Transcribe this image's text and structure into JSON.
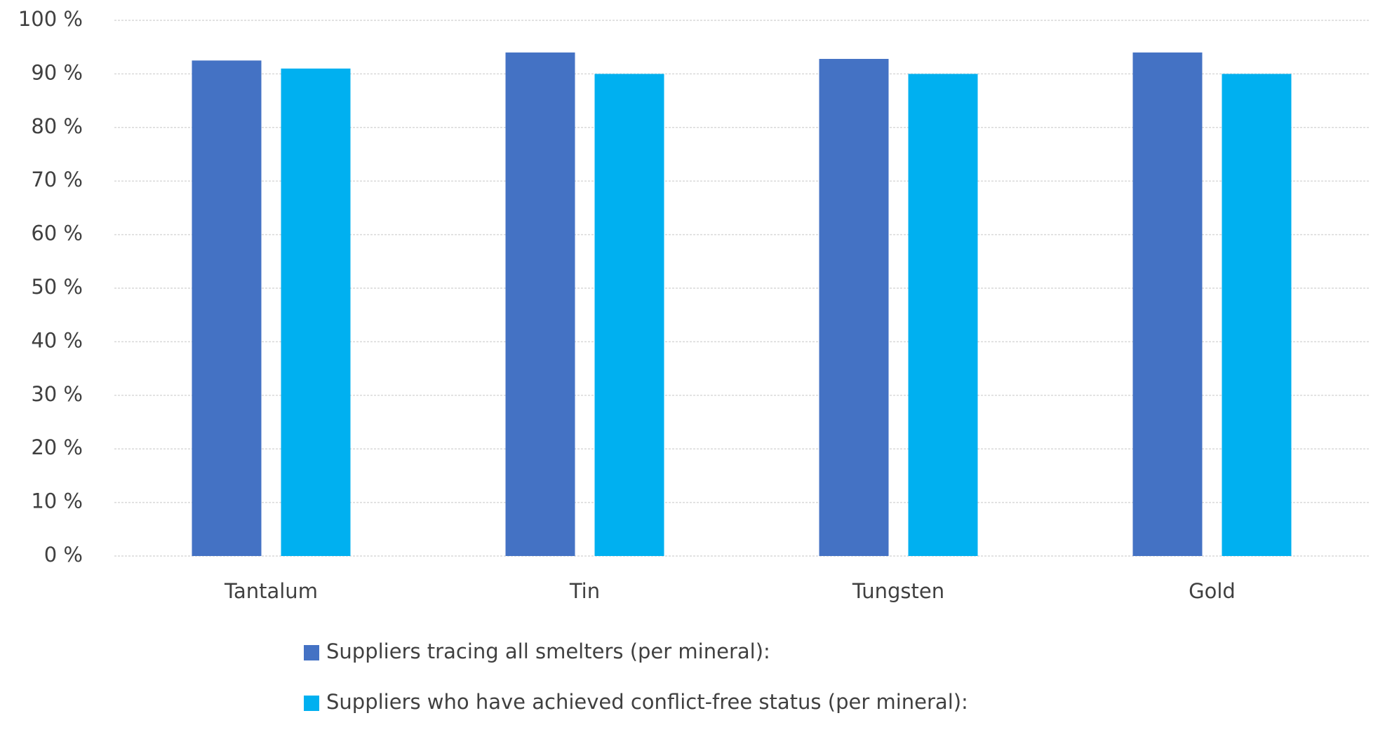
{
  "chart_data": {
    "type": "bar",
    "categories": [
      "Tantalum",
      "Tin",
      "Tungsten",
      "Gold"
    ],
    "series": [
      {
        "name": "Suppliers tracing all smelters (per mineral):",
        "color": "#4472c4",
        "values": [
          92.5,
          94,
          92.8,
          94
        ]
      },
      {
        "name": "Suppliers who have achieved conflict-free status (per mineral):",
        "color": "#00b0f0",
        "values": [
          91,
          90,
          90,
          90
        ]
      }
    ],
    "ylim": [
      0,
      100
    ],
    "yticks": [
      {
        "value": 0,
        "label": "0 %"
      },
      {
        "value": 10,
        "label": "10 %"
      },
      {
        "value": 20,
        "label": "20 %"
      },
      {
        "value": 30,
        "label": "30 %"
      },
      {
        "value": 40,
        "label": "40 %"
      },
      {
        "value": 50,
        "label": "50 %"
      },
      {
        "value": 60,
        "label": "60 %"
      },
      {
        "value": 70,
        "label": "70 %"
      },
      {
        "value": 80,
        "label": "80 %"
      },
      {
        "value": 90,
        "label": "90 %"
      },
      {
        "value": 100,
        "label": "100 %"
      }
    ],
    "grid": true,
    "legend": "bottom"
  }
}
